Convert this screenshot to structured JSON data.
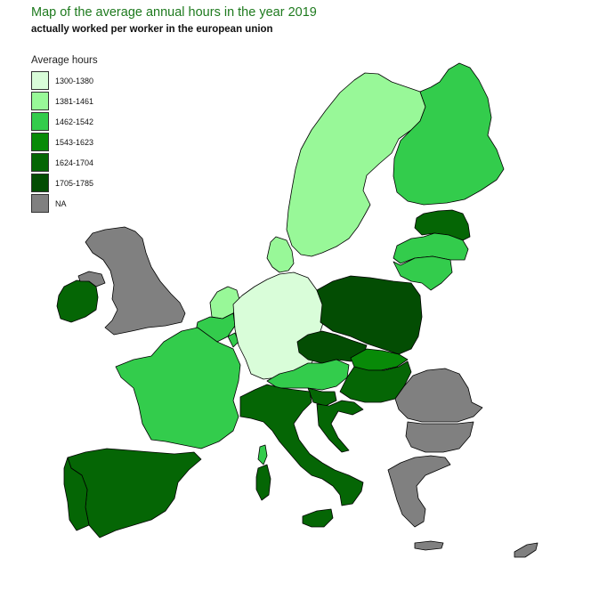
{
  "title": "Map of the average annual hours in the year 2019",
  "subtitle": "actually worked per worker in the european union",
  "legend": {
    "title": "Average hours",
    "items": [
      {
        "label": "1300-1380",
        "color": "#d9fdd9"
      },
      {
        "label": "1381-1461",
        "color": "#98f898"
      },
      {
        "label": "1462-1542",
        "color": "#33cc4c"
      },
      {
        "label": "1543-1623",
        "color": "#088a08"
      },
      {
        "label": "1624-1704",
        "color": "#056605"
      },
      {
        "label": "1705-1785",
        "color": "#034d03"
      },
      {
        "label": "NA",
        "color": "#808080"
      }
    ]
  },
  "countries": [
    {
      "name": "Germany",
      "bin": "1300-1380"
    },
    {
      "name": "Sweden",
      "bin": "1381-1461"
    },
    {
      "name": "Denmark",
      "bin": "1381-1461"
    },
    {
      "name": "Netherlands",
      "bin": "1381-1461"
    },
    {
      "name": "Finland",
      "bin": "1462-1542"
    },
    {
      "name": "France",
      "bin": "1462-1542"
    },
    {
      "name": "Belgium",
      "bin": "1462-1542"
    },
    {
      "name": "Luxembourg",
      "bin": "1462-1542"
    },
    {
      "name": "Austria",
      "bin": "1462-1542"
    },
    {
      "name": "Lithuania",
      "bin": "1462-1542"
    },
    {
      "name": "Latvia",
      "bin": "1462-1542"
    },
    {
      "name": "Corsica",
      "bin": "1462-1542"
    },
    {
      "name": "Slovakia",
      "bin": "1543-1623"
    },
    {
      "name": "Hungary",
      "bin": "1624-1704"
    },
    {
      "name": "Estonia",
      "bin": "1624-1704"
    },
    {
      "name": "Italy",
      "bin": "1624-1704"
    },
    {
      "name": "Spain",
      "bin": "1624-1704"
    },
    {
      "name": "Slovenia",
      "bin": "1624-1704"
    },
    {
      "name": "Croatia",
      "bin": "1624-1704"
    },
    {
      "name": "Ireland",
      "bin": "1624-1704"
    },
    {
      "name": "Portugal",
      "bin": "1624-1704"
    },
    {
      "name": "Poland",
      "bin": "1705-1785"
    },
    {
      "name": "Czechia",
      "bin": "1705-1785"
    },
    {
      "name": "United Kingdom",
      "bin": "NA"
    },
    {
      "name": "Romania",
      "bin": "NA"
    },
    {
      "name": "Bulgaria",
      "bin": "NA"
    },
    {
      "name": "Greece",
      "bin": "NA"
    },
    {
      "name": "Cyprus",
      "bin": "NA"
    },
    {
      "name": "Northern Ireland",
      "bin": "NA"
    }
  ]
}
